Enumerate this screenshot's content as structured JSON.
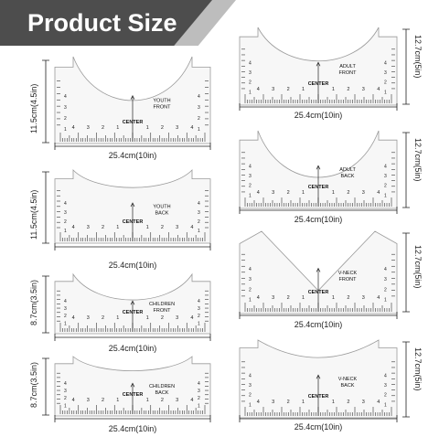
{
  "header": {
    "title": "Product Size"
  },
  "rulers": [
    {
      "id": "youth-front",
      "label_line1": "YOUTH",
      "label_line2": "FRONT",
      "center": "CENTER",
      "height_label": "11.5cm(4.5in)",
      "width_label": "25.4cm(10in)"
    },
    {
      "id": "youth-back",
      "label_line1": "YOUTH",
      "label_line2": "BACK",
      "center": "CENTER",
      "height_label": "11.5cm(4.5in)",
      "width_label": "25.4cm(10in)"
    },
    {
      "id": "children-front",
      "label_line1": "CHILDREN",
      "label_line2": "FRONT",
      "center": "CENTER",
      "height_label": "8.7cm(3.5in)",
      "width_label": "25.4cm(10in)"
    },
    {
      "id": "children-back",
      "label_line1": "CHILDREN",
      "label_line2": "BACK",
      "center": "CENTER",
      "height_label": "8.7cm(3.5in)",
      "width_label": "25.4cm(10in)"
    },
    {
      "id": "adult-front",
      "label_line1": "ADULT",
      "label_line2": "FRONT",
      "center": "CENTER",
      "height_label": "12.7cm(5in)",
      "width_label": "25.4cm(10in)"
    },
    {
      "id": "adult-back",
      "label_line1": "ADULT",
      "label_line2": "BACK",
      "center": "CENTER",
      "height_label": "12.7cm(5in)",
      "width_label": "25.4cm(10in)"
    },
    {
      "id": "vneck-front",
      "label_line1": "V-NECK",
      "label_line2": "FRONT",
      "center": "CENTER",
      "height_label": "12.7cm(5in)",
      "width_label": "25.4cm(10in)"
    },
    {
      "id": "vneck-back",
      "label_line1": "V-NECK",
      "label_line2": "BACK",
      "center": "CENTER",
      "height_label": "12.7cm(5in)",
      "width_label": "25.4cm(10in)"
    }
  ],
  "scale_numbers": [
    "4",
    "3",
    "2",
    "1",
    "1",
    "2",
    "3",
    "4"
  ],
  "side_numbers": [
    "1",
    "2",
    "3",
    "4"
  ]
}
